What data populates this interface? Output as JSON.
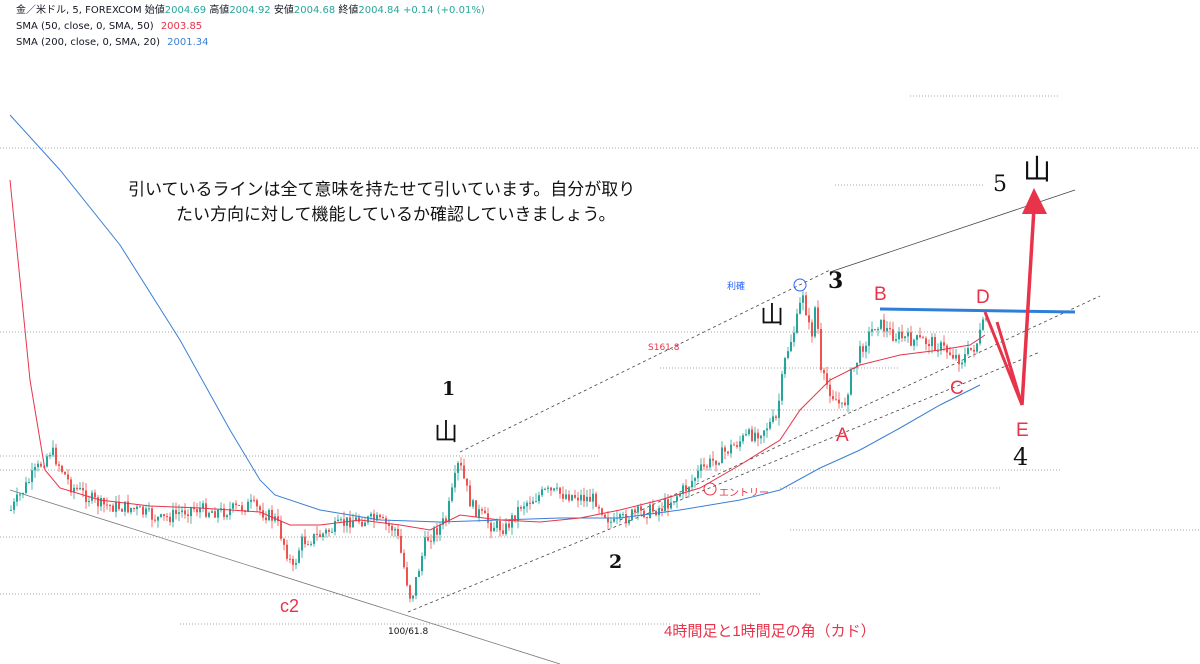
{
  "header": {
    "symbol_label": "金／米ドル, 5, FOREXCOM",
    "open_label": "始値",
    "open_value": "2004.69",
    "high_label": "高値",
    "high_value": "2004.92",
    "low_label": "安値",
    "low_value": "2004.68",
    "close_label": "終値",
    "close_value": "2004.84",
    "change": "+0.14 (+0.01%)"
  },
  "indicators": [
    {
      "label": "SMA (50, close, 0, SMA, 50)",
      "value": "2003.85",
      "color": "#e8334a"
    },
    {
      "label": "SMA (200, close, 0, SMA, 20)",
      "value": "2001.34",
      "color": "#3a7fd5"
    }
  ],
  "annotations": {
    "note_line1": "引いているラインは全て意味を持たせて引いています。自分が取り",
    "note_line2": "たい方向に対して機能しているか確認していきましょう。",
    "wave_1": "1",
    "wave_2": "2",
    "wave_3": "3",
    "wave_4": "4",
    "wave_5": "5",
    "mountain": "山",
    "point_A": "A",
    "point_B": "B",
    "point_C": "C",
    "point_D": "D",
    "point_E": "E",
    "c2": "c2",
    "fib_label": "100/61.8",
    "fib_label_2": "S161.8",
    "take_profit": "利確",
    "entry": "エントリー",
    "corner_note": "4時間足と1時間足の角（カド）"
  },
  "colors": {
    "bull": "#26a69a",
    "bear": "#ef5350",
    "sma50": "#e8334a",
    "sma200": "#3a7fd5",
    "accent_red": "#e8334a",
    "accent_blue": "#2962ff"
  },
  "chart_data": {
    "type": "candlestick",
    "symbol": "金／米ドル",
    "timeframe": "5",
    "series": [
      {
        "name": "SMA (50, close, 0, SMA, 50)",
        "last": 2003.85
      },
      {
        "name": "SMA (200, close, 0, SMA, 20)",
        "last": 2001.34
      }
    ],
    "last_close": 2004.84,
    "grid": false
  }
}
